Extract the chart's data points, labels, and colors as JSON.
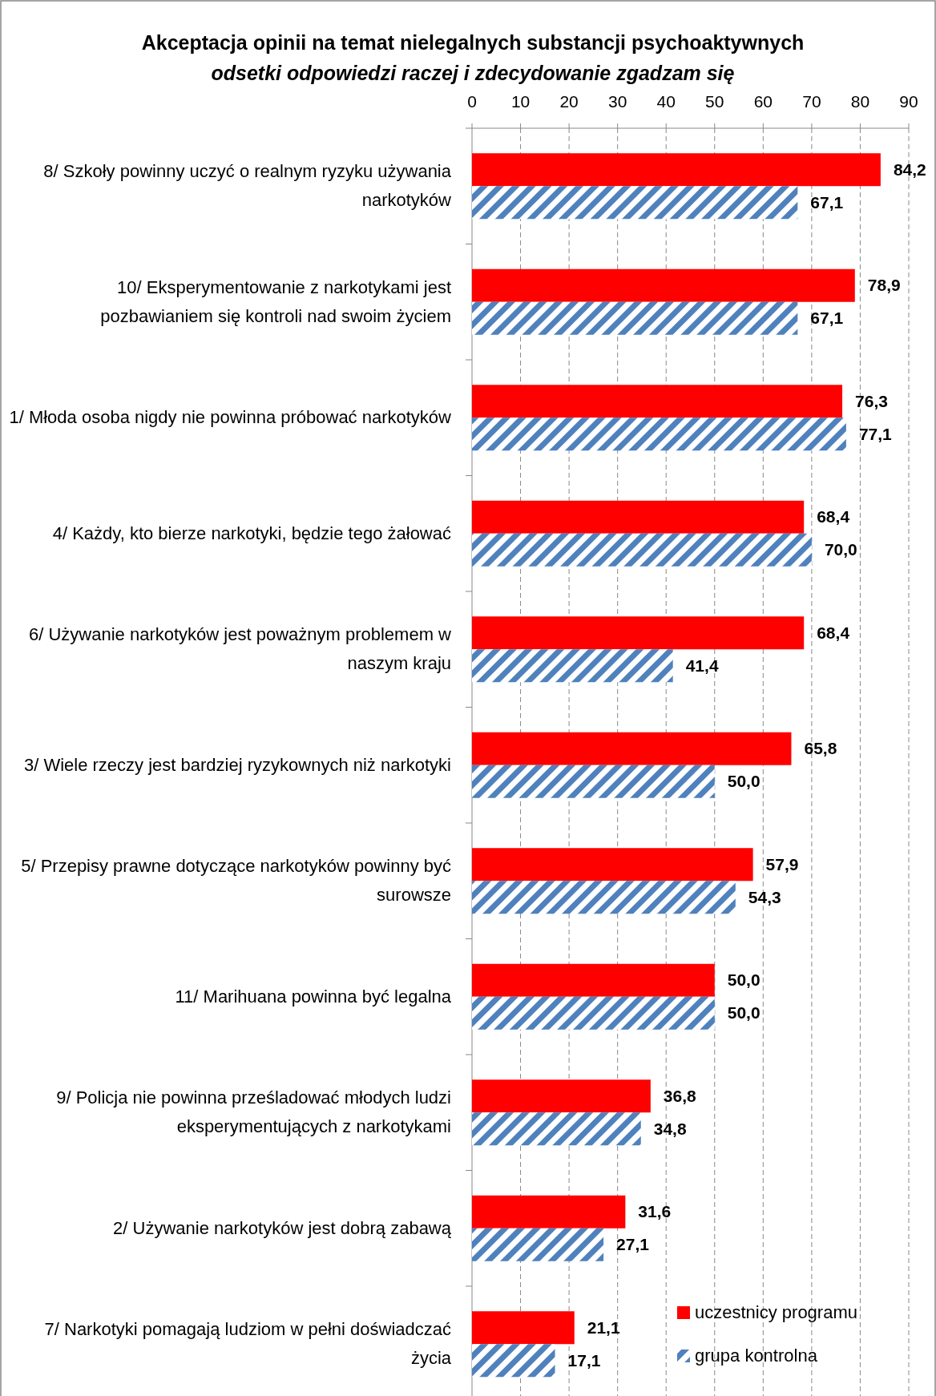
{
  "chart_data": {
    "type": "bar",
    "orientation": "horizontal",
    "title": "Akceptacja opinii na temat nielegalnych substancji psychoaktywnych",
    "subtitle": "odsetki odpowiedzi raczej i zdecydowanie zgadzam się",
    "categories": [
      "8/ Szkoły powinny uczyć o realnym ryzyku używania narkotyków",
      "10/ Eksperymentowanie z narkotykami jest pozbawianiem się kontroli nad swoim życiem",
      "1/ Młoda osoba nigdy nie powinna próbować narkotyków",
      "4/ Każdy, kto bierze narkotyki, będzie tego żałować",
      "6/ Używanie narkotyków jest poważnym problemem w naszym kraju",
      "3/ Wiele rzeczy jest bardziej ryzykownych niż narkotyki",
      "5/ Przepisy prawne dotyczące narkotyków powinny być surowsze",
      "11/ Marihuana powinna być legalna",
      "9/ Policja nie powinna prześladować młodych ludzi eksperymentujących z narkotykami",
      "2/ Używanie narkotyków jest dobrą zabawą",
      "7/ Narkotyki pomagają ludziom w pełni doświadczać życia"
    ],
    "series": [
      {
        "name": "uczestnicy programu",
        "color": "#ff0000",
        "values": [
          84.2,
          78.9,
          76.3,
          68.4,
          68.4,
          65.8,
          57.9,
          50.0,
          36.8,
          31.6,
          21.1
        ],
        "value_labels": [
          "84,2",
          "78,9",
          "76,3",
          "68,4",
          "68,4",
          "65,8",
          "57,9",
          "50,0",
          "36,8",
          "31,6",
          "21,1"
        ]
      },
      {
        "name": "grupa kontrolna",
        "color": "#4f81bd",
        "values": [
          67.1,
          67.1,
          77.1,
          70.0,
          41.4,
          50.0,
          54.3,
          50.0,
          34.8,
          27.1,
          17.1
        ],
        "value_labels": [
          "67,1",
          "67,1",
          "77,1",
          "70,0",
          "41,4",
          "50,0",
          "54,3",
          "50,0",
          "34,8",
          "27,1",
          "17,1"
        ]
      }
    ],
    "xlim": [
      0,
      90
    ],
    "xticks": [
      0,
      10,
      20,
      30,
      40,
      50,
      60,
      70,
      80,
      90
    ],
    "grid": "x",
    "legend": "bottom right"
  }
}
